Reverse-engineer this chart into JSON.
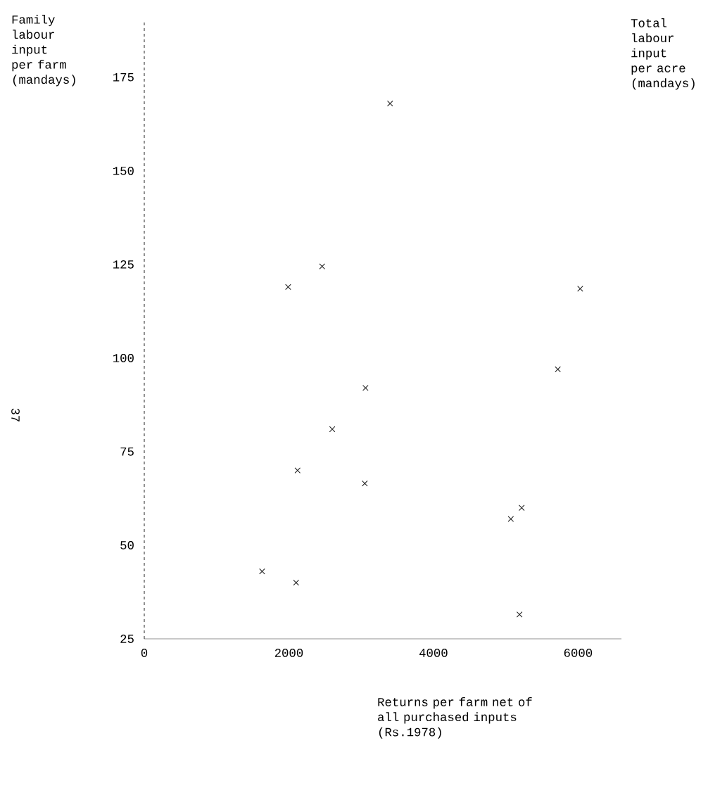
{
  "chart_data": {
    "type": "scatter",
    "xlabel": "Returns per farm net of all purchased inputs (Rs.1978)",
    "ylabel": "Family labour input per farm (mandays)",
    "annotations": [
      "Total labour input per acre (mandays)",
      "37"
    ],
    "x": [
      3400,
      2460,
      1990,
      6030,
      5720,
      3060,
      2600,
      2120,
      3050,
      5220,
      5070,
      1630,
      2100,
      5190
    ],
    "values": [
      168,
      124.5,
      119,
      118.5,
      97,
      92,
      81,
      70,
      66.5,
      60,
      57,
      43,
      40,
      31.5
    ],
    "color": "#222222",
    "marker": "cross",
    "xlim": [
      0,
      6600
    ],
    "ylim": [
      25,
      190
    ],
    "xticks": [
      0,
      2000,
      4000,
      6000
    ],
    "yticks": [
      25,
      50,
      75,
      100,
      125,
      150,
      175
    ],
    "grid": false
  }
}
